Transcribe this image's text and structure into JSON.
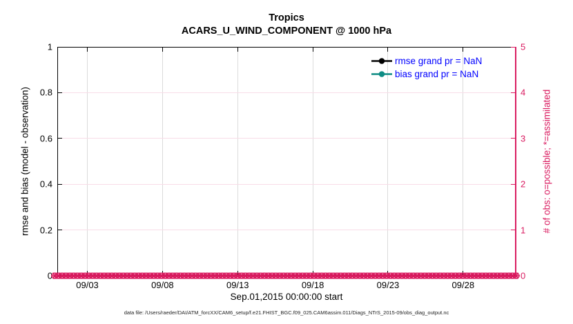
{
  "title": "Tropics",
  "subtitle": "ACARS_U_WIND_COMPONENT @ 1000 hPa",
  "caption": "data file: /Users/raeder/DAI/ATM_forcXX/CAM6_setup/f.e21.FHIST_BGC.f09_025.CAM6assim.011/Diags_NTrS_2015-09/obs_diag_output.nc",
  "chart_data": {
    "type": "line",
    "title": "Tropics",
    "subtitle": "ACARS_U_WIND_COMPONENT @ 1000 hPa",
    "x_axis": {
      "label": "Sep.01,2015 00:00:00 start",
      "tick_labels": [
        "09/03",
        "09/08",
        "09/13",
        "09/18",
        "09/23",
        "09/28"
      ],
      "tick_days": [
        2,
        7,
        12,
        17,
        22,
        27
      ],
      "range_days": [
        0,
        30.5
      ],
      "grid": true
    },
    "left_axis": {
      "label": "rmse and bias (model - observation)",
      "ticks": [
        0,
        0.2,
        0.4,
        0.6,
        0.8,
        1
      ],
      "range": [
        0,
        1
      ],
      "color": "#000000"
    },
    "right_axis": {
      "label": "# of obs: o=possible; *=assimilated",
      "ticks": [
        0,
        1,
        2,
        3,
        4,
        5
      ],
      "range": [
        0,
        5
      ],
      "color": "#D91A5F",
      "grid": true
    },
    "series": [
      {
        "name": "rmse grand pr = NaN",
        "color": "#000000",
        "marker": "filled-circle",
        "values": "NaN"
      },
      {
        "name": "bias grand pr = NaN",
        "color": "#0E8C84",
        "marker": "filled-circle",
        "values": "NaN"
      },
      {
        "name": "possible obs (o)",
        "color": "#D91A5F",
        "marker": "o",
        "constant_value": 0,
        "n_markers": 122
      },
      {
        "name": "assimilated obs (*)",
        "color": "#D91A5F",
        "marker": "*",
        "constant_value": 0,
        "n_markers": 122
      }
    ],
    "legend_position": "top-right-inside",
    "legend_text_color": "#0000FF",
    "grid_colors": {
      "vertical": "#DBDBDB",
      "horizontal": "#F8DCE7"
    }
  }
}
